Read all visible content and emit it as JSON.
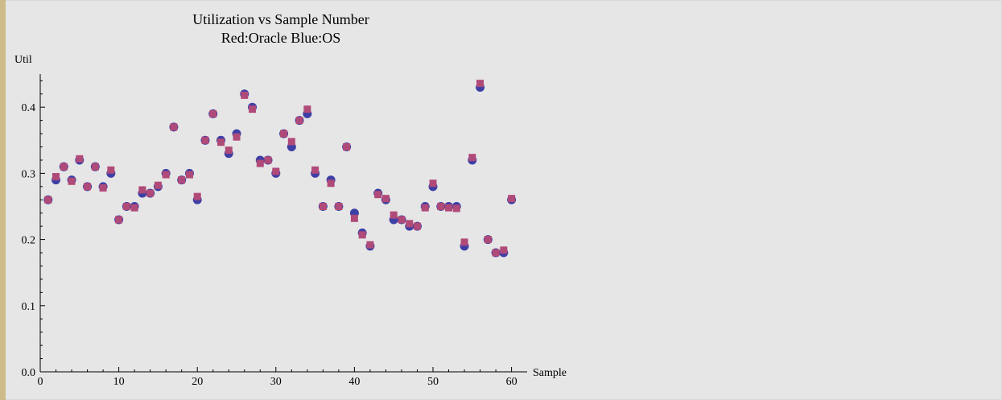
{
  "chart_data": {
    "type": "scatter",
    "title": "Utilization vs Sample Number",
    "subtitle": "Red:Oracle Blue:OS",
    "xlabel": "Sample",
    "ylabel": "Util",
    "xlim": [
      0,
      61
    ],
    "ylim": [
      0,
      0.45
    ],
    "xticks": [
      "0",
      "10",
      "20",
      "30",
      "40",
      "50",
      "60"
    ],
    "yticks": [
      "0.0",
      "0.1",
      "0.2",
      "0.3",
      "0.4"
    ],
    "grid": false,
    "series": [
      {
        "name": "OS",
        "color": "#3d3fa6",
        "marker": "circle",
        "x": [
          1,
          2,
          3,
          4,
          5,
          6,
          7,
          8,
          9,
          10,
          11,
          12,
          13,
          14,
          15,
          16,
          17,
          18,
          19,
          20,
          21,
          22,
          23,
          24,
          25,
          26,
          27,
          28,
          29,
          30,
          31,
          32,
          33,
          34,
          35,
          36,
          37,
          38,
          39,
          40,
          41,
          42,
          43,
          44,
          45,
          46,
          47,
          48,
          49,
          50,
          51,
          52,
          53,
          54,
          55,
          56,
          57,
          58,
          59,
          60
        ],
        "values": [
          0.26,
          0.29,
          0.31,
          0.29,
          0.32,
          0.28,
          0.31,
          0.28,
          0.3,
          0.23,
          0.25,
          0.25,
          0.27,
          0.27,
          0.28,
          0.3,
          0.37,
          0.29,
          0.3,
          0.26,
          0.35,
          0.39,
          0.35,
          0.33,
          0.36,
          0.42,
          0.4,
          0.32,
          0.32,
          0.3,
          0.36,
          0.34,
          0.38,
          0.39,
          0.3,
          0.25,
          0.29,
          0.25,
          0.34,
          0.24,
          0.21,
          0.19,
          0.27,
          0.26,
          0.23,
          0.23,
          0.22,
          0.22,
          0.25,
          0.28,
          0.25,
          0.25,
          0.25,
          0.19,
          0.32,
          0.43,
          0.2,
          0.18,
          0.18,
          0.26
        ]
      },
      {
        "name": "Oracle",
        "color": "#b04a78",
        "marker": "square",
        "x": [
          1,
          2,
          3,
          4,
          5,
          6,
          7,
          8,
          9,
          10,
          11,
          12,
          13,
          14,
          15,
          16,
          17,
          18,
          19,
          20,
          21,
          22,
          23,
          24,
          25,
          26,
          27,
          28,
          29,
          30,
          31,
          32,
          33,
          34,
          35,
          36,
          37,
          38,
          39,
          40,
          41,
          42,
          43,
          44,
          45,
          46,
          47,
          48,
          49,
          50,
          51,
          52,
          53,
          54,
          55,
          56,
          57,
          58,
          59,
          60
        ],
        "values": [
          0.26,
          0.295,
          0.31,
          0.288,
          0.322,
          0.28,
          0.31,
          0.278,
          0.305,
          0.23,
          0.25,
          0.248,
          0.275,
          0.27,
          0.282,
          0.298,
          0.37,
          0.29,
          0.298,
          0.265,
          0.35,
          0.39,
          0.347,
          0.335,
          0.355,
          0.418,
          0.397,
          0.315,
          0.32,
          0.303,
          0.36,
          0.348,
          0.38,
          0.397,
          0.305,
          0.25,
          0.285,
          0.25,
          0.34,
          0.232,
          0.207,
          0.192,
          0.268,
          0.262,
          0.237,
          0.23,
          0.224,
          0.22,
          0.248,
          0.285,
          0.25,
          0.248,
          0.247,
          0.196,
          0.324,
          0.436,
          0.2,
          0.18,
          0.184,
          0.262
        ]
      }
    ]
  }
}
